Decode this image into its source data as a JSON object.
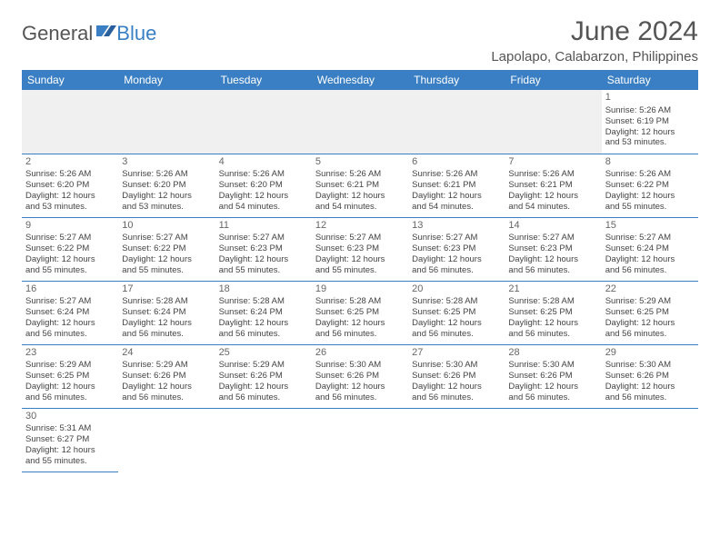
{
  "logo": {
    "text_general": "General",
    "text_blue": "Blue",
    "icon_color": "#3a7fc4"
  },
  "title": {
    "month": "June 2024",
    "location": "Lapolapo, Calabarzon, Philippines"
  },
  "colors": {
    "header_bg": "#3a7fc4",
    "header_text": "#ffffff",
    "text": "#444444",
    "empty_bg": "#f0f0f0",
    "border": "#3a7fc4"
  },
  "day_headers": [
    "Sunday",
    "Monday",
    "Tuesday",
    "Wednesday",
    "Thursday",
    "Friday",
    "Saturday"
  ],
  "weeks": [
    [
      {
        "empty": true
      },
      {
        "empty": true
      },
      {
        "empty": true
      },
      {
        "empty": true
      },
      {
        "empty": true
      },
      {
        "empty": true
      },
      {
        "num": "1",
        "sunrise": "Sunrise: 5:26 AM",
        "sunset": "Sunset: 6:19 PM",
        "daylight1": "Daylight: 12 hours",
        "daylight2": "and 53 minutes."
      }
    ],
    [
      {
        "num": "2",
        "sunrise": "Sunrise: 5:26 AM",
        "sunset": "Sunset: 6:20 PM",
        "daylight1": "Daylight: 12 hours",
        "daylight2": "and 53 minutes."
      },
      {
        "num": "3",
        "sunrise": "Sunrise: 5:26 AM",
        "sunset": "Sunset: 6:20 PM",
        "daylight1": "Daylight: 12 hours",
        "daylight2": "and 53 minutes."
      },
      {
        "num": "4",
        "sunrise": "Sunrise: 5:26 AM",
        "sunset": "Sunset: 6:20 PM",
        "daylight1": "Daylight: 12 hours",
        "daylight2": "and 54 minutes."
      },
      {
        "num": "5",
        "sunrise": "Sunrise: 5:26 AM",
        "sunset": "Sunset: 6:21 PM",
        "daylight1": "Daylight: 12 hours",
        "daylight2": "and 54 minutes."
      },
      {
        "num": "6",
        "sunrise": "Sunrise: 5:26 AM",
        "sunset": "Sunset: 6:21 PM",
        "daylight1": "Daylight: 12 hours",
        "daylight2": "and 54 minutes."
      },
      {
        "num": "7",
        "sunrise": "Sunrise: 5:26 AM",
        "sunset": "Sunset: 6:21 PM",
        "daylight1": "Daylight: 12 hours",
        "daylight2": "and 54 minutes."
      },
      {
        "num": "8",
        "sunrise": "Sunrise: 5:26 AM",
        "sunset": "Sunset: 6:22 PM",
        "daylight1": "Daylight: 12 hours",
        "daylight2": "and 55 minutes."
      }
    ],
    [
      {
        "num": "9",
        "sunrise": "Sunrise: 5:27 AM",
        "sunset": "Sunset: 6:22 PM",
        "daylight1": "Daylight: 12 hours",
        "daylight2": "and 55 minutes."
      },
      {
        "num": "10",
        "sunrise": "Sunrise: 5:27 AM",
        "sunset": "Sunset: 6:22 PM",
        "daylight1": "Daylight: 12 hours",
        "daylight2": "and 55 minutes."
      },
      {
        "num": "11",
        "sunrise": "Sunrise: 5:27 AM",
        "sunset": "Sunset: 6:23 PM",
        "daylight1": "Daylight: 12 hours",
        "daylight2": "and 55 minutes."
      },
      {
        "num": "12",
        "sunrise": "Sunrise: 5:27 AM",
        "sunset": "Sunset: 6:23 PM",
        "daylight1": "Daylight: 12 hours",
        "daylight2": "and 55 minutes."
      },
      {
        "num": "13",
        "sunrise": "Sunrise: 5:27 AM",
        "sunset": "Sunset: 6:23 PM",
        "daylight1": "Daylight: 12 hours",
        "daylight2": "and 56 minutes."
      },
      {
        "num": "14",
        "sunrise": "Sunrise: 5:27 AM",
        "sunset": "Sunset: 6:23 PM",
        "daylight1": "Daylight: 12 hours",
        "daylight2": "and 56 minutes."
      },
      {
        "num": "15",
        "sunrise": "Sunrise: 5:27 AM",
        "sunset": "Sunset: 6:24 PM",
        "daylight1": "Daylight: 12 hours",
        "daylight2": "and 56 minutes."
      }
    ],
    [
      {
        "num": "16",
        "sunrise": "Sunrise: 5:27 AM",
        "sunset": "Sunset: 6:24 PM",
        "daylight1": "Daylight: 12 hours",
        "daylight2": "and 56 minutes."
      },
      {
        "num": "17",
        "sunrise": "Sunrise: 5:28 AM",
        "sunset": "Sunset: 6:24 PM",
        "daylight1": "Daylight: 12 hours",
        "daylight2": "and 56 minutes."
      },
      {
        "num": "18",
        "sunrise": "Sunrise: 5:28 AM",
        "sunset": "Sunset: 6:24 PM",
        "daylight1": "Daylight: 12 hours",
        "daylight2": "and 56 minutes."
      },
      {
        "num": "19",
        "sunrise": "Sunrise: 5:28 AM",
        "sunset": "Sunset: 6:25 PM",
        "daylight1": "Daylight: 12 hours",
        "daylight2": "and 56 minutes."
      },
      {
        "num": "20",
        "sunrise": "Sunrise: 5:28 AM",
        "sunset": "Sunset: 6:25 PM",
        "daylight1": "Daylight: 12 hours",
        "daylight2": "and 56 minutes."
      },
      {
        "num": "21",
        "sunrise": "Sunrise: 5:28 AM",
        "sunset": "Sunset: 6:25 PM",
        "daylight1": "Daylight: 12 hours",
        "daylight2": "and 56 minutes."
      },
      {
        "num": "22",
        "sunrise": "Sunrise: 5:29 AM",
        "sunset": "Sunset: 6:25 PM",
        "daylight1": "Daylight: 12 hours",
        "daylight2": "and 56 minutes."
      }
    ],
    [
      {
        "num": "23",
        "sunrise": "Sunrise: 5:29 AM",
        "sunset": "Sunset: 6:25 PM",
        "daylight1": "Daylight: 12 hours",
        "daylight2": "and 56 minutes."
      },
      {
        "num": "24",
        "sunrise": "Sunrise: 5:29 AM",
        "sunset": "Sunset: 6:26 PM",
        "daylight1": "Daylight: 12 hours",
        "daylight2": "and 56 minutes."
      },
      {
        "num": "25",
        "sunrise": "Sunrise: 5:29 AM",
        "sunset": "Sunset: 6:26 PM",
        "daylight1": "Daylight: 12 hours",
        "daylight2": "and 56 minutes."
      },
      {
        "num": "26",
        "sunrise": "Sunrise: 5:30 AM",
        "sunset": "Sunset: 6:26 PM",
        "daylight1": "Daylight: 12 hours",
        "daylight2": "and 56 minutes."
      },
      {
        "num": "27",
        "sunrise": "Sunrise: 5:30 AM",
        "sunset": "Sunset: 6:26 PM",
        "daylight1": "Daylight: 12 hours",
        "daylight2": "and 56 minutes."
      },
      {
        "num": "28",
        "sunrise": "Sunrise: 5:30 AM",
        "sunset": "Sunset: 6:26 PM",
        "daylight1": "Daylight: 12 hours",
        "daylight2": "and 56 minutes."
      },
      {
        "num": "29",
        "sunrise": "Sunrise: 5:30 AM",
        "sunset": "Sunset: 6:26 PM",
        "daylight1": "Daylight: 12 hours",
        "daylight2": "and 56 minutes."
      }
    ],
    [
      {
        "num": "30",
        "sunrise": "Sunrise: 5:31 AM",
        "sunset": "Sunset: 6:27 PM",
        "daylight1": "Daylight: 12 hours",
        "daylight2": "and 55 minutes."
      },
      {
        "empty": true,
        "noborder": true
      },
      {
        "empty": true,
        "noborder": true
      },
      {
        "empty": true,
        "noborder": true
      },
      {
        "empty": true,
        "noborder": true
      },
      {
        "empty": true,
        "noborder": true
      },
      {
        "empty": true,
        "noborder": true
      }
    ]
  ]
}
